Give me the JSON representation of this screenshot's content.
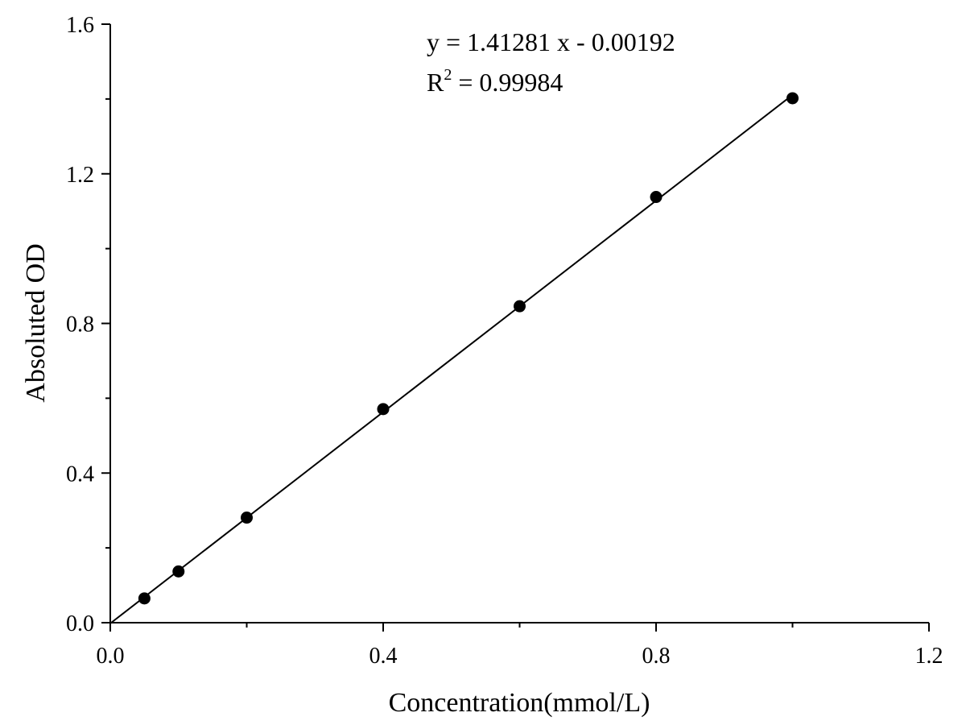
{
  "chart_data": {
    "type": "scatter",
    "title": "",
    "xlabel": "Concentration(mmol/L)",
    "ylabel": "Absoluted OD",
    "xlim": [
      0.0,
      1.2
    ],
    "ylim": [
      0.0,
      1.6
    ],
    "x_ticks": [
      "0.0",
      "0.4",
      "0.8",
      "1.2"
    ],
    "y_ticks": [
      "0.0",
      "0.4",
      "0.8",
      "1.2",
      "1.6"
    ],
    "grid": false,
    "legend": "none",
    "series": [
      {
        "x": [
          0.05,
          0.1,
          0.2,
          0.4,
          0.6,
          0.8,
          1.0
        ],
        "y": [
          0.065,
          0.137,
          0.281,
          0.571,
          0.846,
          1.138,
          1.402
        ],
        "marker": "filled-circle",
        "color": "#000000"
      }
    ],
    "fit_line": {
      "slope": 1.41281,
      "intercept": -0.00192,
      "x_range": [
        0.0,
        1.0
      ],
      "color": "#000000"
    },
    "annotations": {
      "equation": "y = 1.41281 x - 0.00192",
      "r2_prefix": "R",
      "r2_sup": "2",
      "r2_value": " = 0.99984"
    }
  }
}
